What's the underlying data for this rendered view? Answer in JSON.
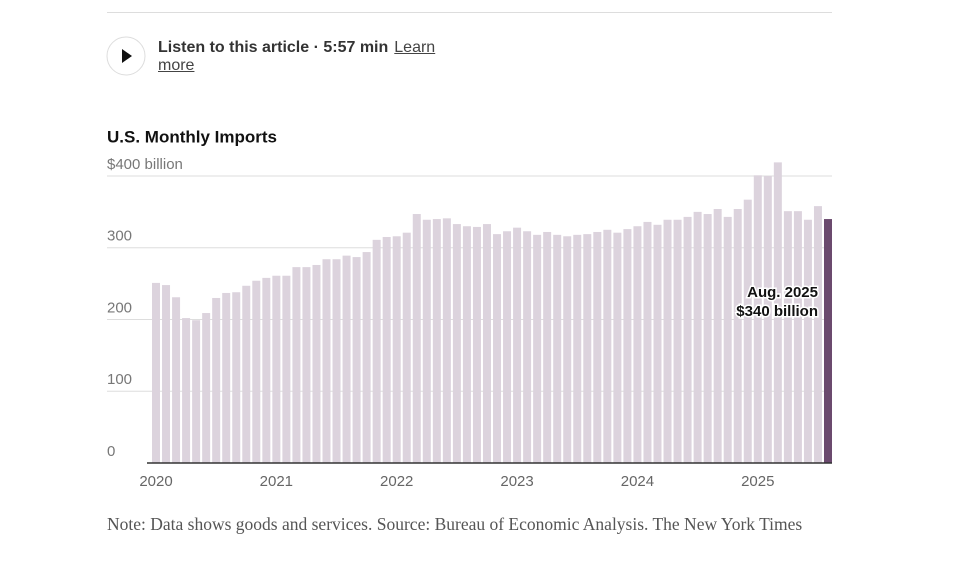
{
  "audio": {
    "label": "Listen to this article · 5:57 min",
    "link": "Learn more"
  },
  "chart_data": {
    "type": "bar",
    "title": "U.S. Monthly Imports",
    "categories": [
      "2020",
      null,
      null,
      null,
      null,
      null,
      null,
      null,
      null,
      null,
      null,
      null,
      "2021",
      null,
      null,
      null,
      null,
      null,
      null,
      null,
      null,
      null,
      null,
      null,
      "2022",
      null,
      null,
      null,
      null,
      null,
      null,
      null,
      null,
      null,
      null,
      null,
      "2023",
      null,
      null,
      null,
      null,
      null,
      null,
      null,
      null,
      null,
      null,
      null,
      "2024",
      null,
      null,
      null,
      null,
      null,
      null,
      null,
      null,
      null,
      null,
      null,
      "2025",
      null,
      null,
      null,
      null,
      null,
      null,
      null
    ],
    "values": [
      251,
      248,
      231,
      202,
      199,
      209,
      230,
      237,
      238,
      247,
      254,
      258,
      261,
      261,
      273,
      273,
      276,
      284,
      284,
      289,
      287,
      294,
      311,
      315,
      316,
      321,
      347,
      339,
      340,
      341,
      333,
      330,
      329,
      333,
      319,
      323,
      328,
      323,
      318,
      322,
      318,
      316,
      318,
      319,
      322,
      325,
      321,
      326,
      330,
      336,
      332,
      339,
      339,
      343,
      350,
      347,
      354,
      343,
      354,
      367,
      401,
      400,
      419,
      351,
      351,
      339,
      358,
      340
    ],
    "color": "#dcd3dd",
    "highlight_color": "#6b4a6e",
    "annotation": {
      "label": "Aug. 2025",
      "value_label": "$340 billion"
    },
    "ylim": [
      0,
      420
    ],
    "yticks": [
      0,
      100,
      200,
      300,
      {
        "value": 400,
        "label": "$400 billion"
      }
    ],
    "grid": true
  },
  "note": "Note: Data shows goods and services.  Source: Bureau of Economic Analysis.  The New York Times"
}
